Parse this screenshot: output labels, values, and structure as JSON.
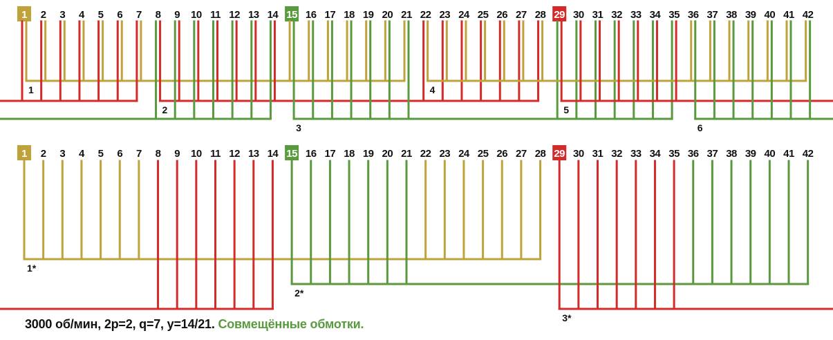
{
  "colors": {
    "yellow": "#bfa23a",
    "red": "#d42a2a",
    "green": "#5a9a3f",
    "text": "#111111"
  },
  "slot_count": 42,
  "highlighted_slots": [
    {
      "slot": 1,
      "color": "yellow"
    },
    {
      "slot": 15,
      "color": "green"
    },
    {
      "slot": 29,
      "color": "red"
    }
  ],
  "top_diagram": {
    "groups": [
      {
        "label": "1",
        "color": "yellow",
        "bus": "yellow",
        "parts": [
          {
            "from": 1,
            "to": 7,
            "side": "R"
          },
          {
            "from": 15,
            "to": 21,
            "side": "L"
          }
        ]
      },
      {
        "label": "2",
        "color": "red",
        "bus": "red",
        "parts": [
          {
            "from": 8,
            "to": 14,
            "side": "R"
          },
          {
            "from": 22,
            "to": 28,
            "side": "L"
          }
        ]
      },
      {
        "label": "3",
        "color": "green",
        "bus": "green",
        "parts": [
          {
            "from": 15,
            "to": 21,
            "side": "R"
          },
          {
            "from": 29,
            "to": 35,
            "side": "L"
          }
        ]
      },
      {
        "label": "4",
        "color": "yellow",
        "bus": "yellow",
        "parts": [
          {
            "from": 22,
            "to": 28,
            "side": "R"
          },
          {
            "from": 36,
            "to": 42,
            "side": "L"
          }
        ]
      },
      {
        "label": "5",
        "color": "red",
        "bus": "red",
        "wraps": true,
        "parts": [
          {
            "from": 29,
            "to": 35,
            "side": "R"
          },
          {
            "from": 1,
            "to": 7,
            "side": "L"
          }
        ]
      },
      {
        "label": "6",
        "color": "green",
        "bus": "green",
        "wraps": true,
        "parts": [
          {
            "from": 36,
            "to": 42,
            "side": "R"
          },
          {
            "from": 8,
            "to": 14,
            "side": "L"
          }
        ]
      }
    ]
  },
  "bottom_diagram": {
    "groups": [
      {
        "label": "1*",
        "color": "yellow",
        "parts": [
          {
            "from": 1,
            "to": 7
          },
          {
            "from": 22,
            "to": 28
          }
        ]
      },
      {
        "label": "2*",
        "color": "green",
        "parts": [
          {
            "from": 15,
            "to": 21
          },
          {
            "from": 36,
            "to": 42
          }
        ]
      },
      {
        "label": "3*",
        "color": "red",
        "wraps": true,
        "parts": [
          {
            "from": 29,
            "to": 35
          },
          {
            "from": 8,
            "to": 14
          }
        ]
      }
    ]
  },
  "caption": {
    "main": "3000 об/мин, 2p=2, q=7, y=14/21.",
    "accent": "Совмещённые обмотки."
  }
}
